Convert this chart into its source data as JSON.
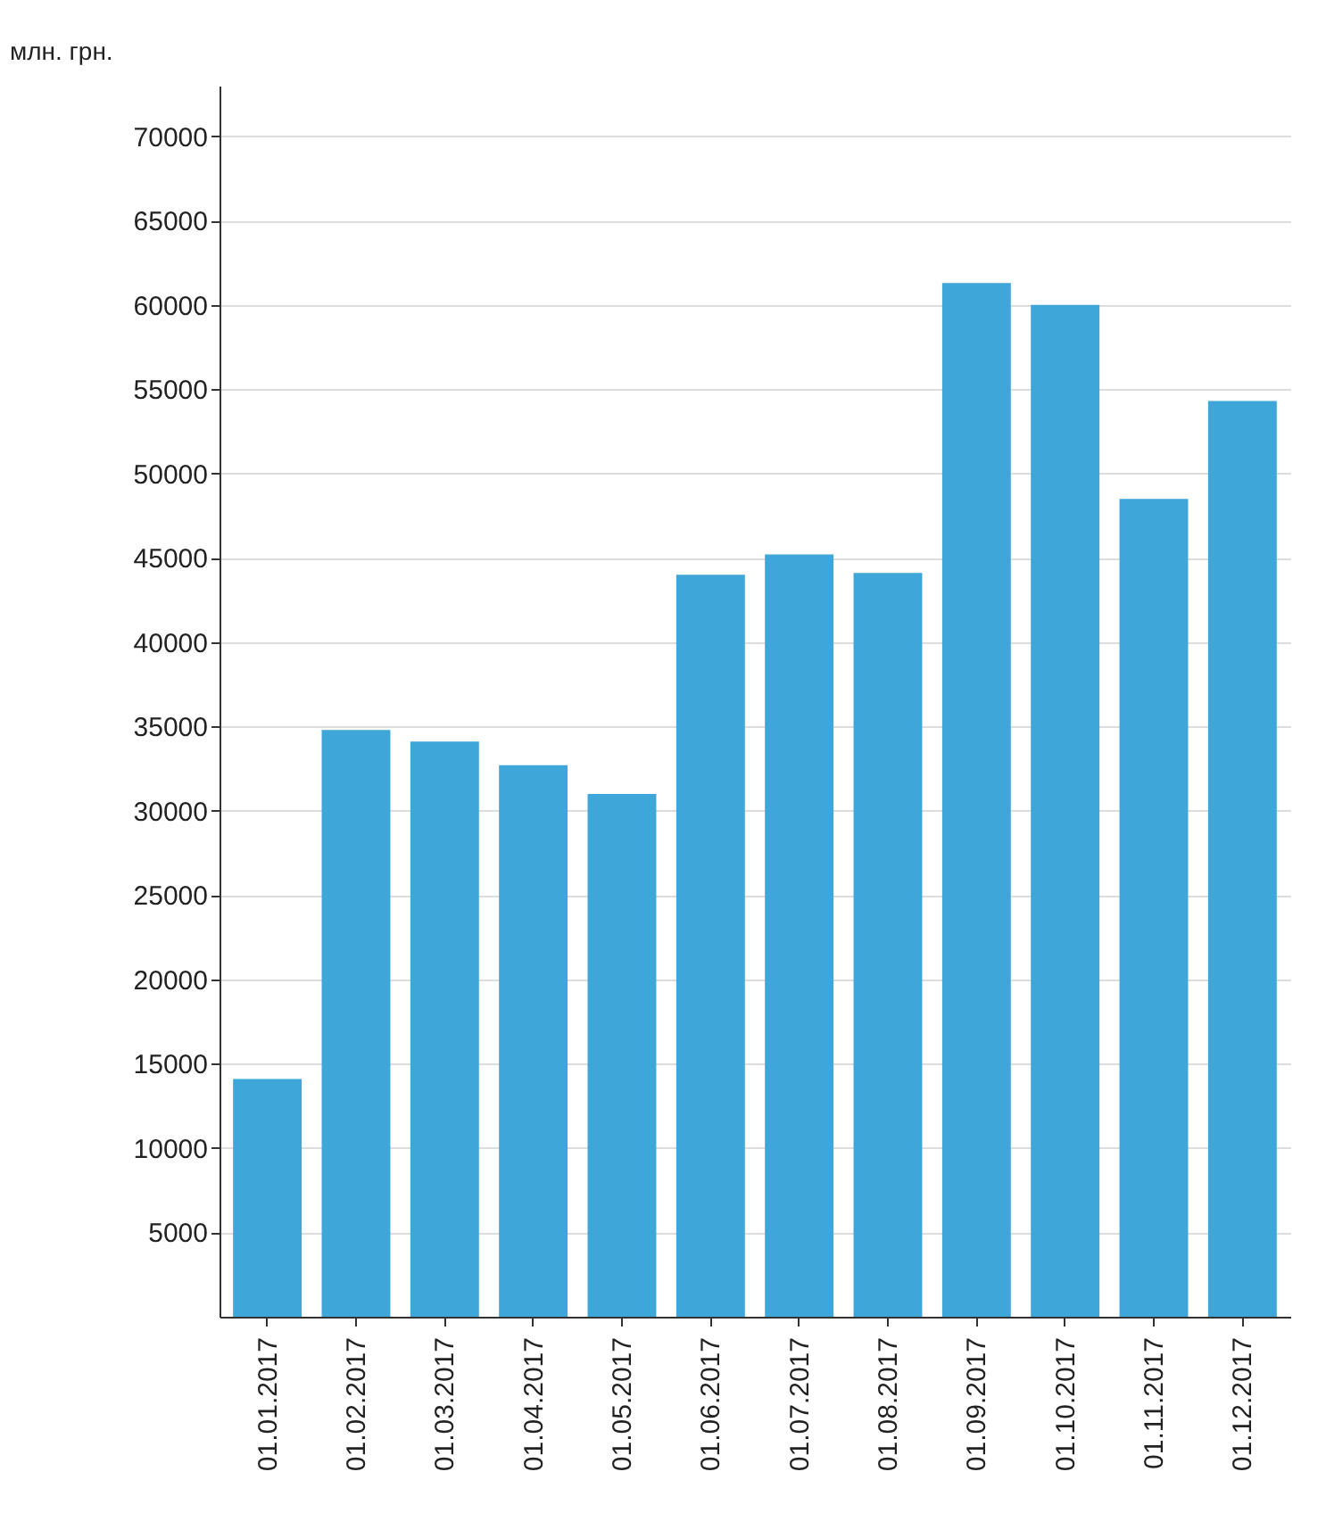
{
  "chart_data": {
    "type": "bar",
    "ylabel": "млн. грн.",
    "categories": [
      "01.01.2017",
      "01.02.2017",
      "01.03.2017",
      "01.04.2017",
      "01.05.2017",
      "01.06.2017",
      "01.07.2017",
      "01.08.2017",
      "01.09.2017",
      "01.10.2017",
      "01.11.2017",
      "01.12.2017"
    ],
    "values": [
      14100,
      34800,
      34100,
      32700,
      31000,
      44000,
      45200,
      44100,
      61300,
      60000,
      48500,
      54300
    ],
    "color": "#3fa6d9",
    "ylim": [
      0,
      73000
    ],
    "yticks": [
      5000,
      10000,
      15000,
      20000,
      25000,
      30000,
      35000,
      40000,
      45000,
      50000,
      55000,
      60000,
      65000,
      70000
    ],
    "grid": "y"
  }
}
